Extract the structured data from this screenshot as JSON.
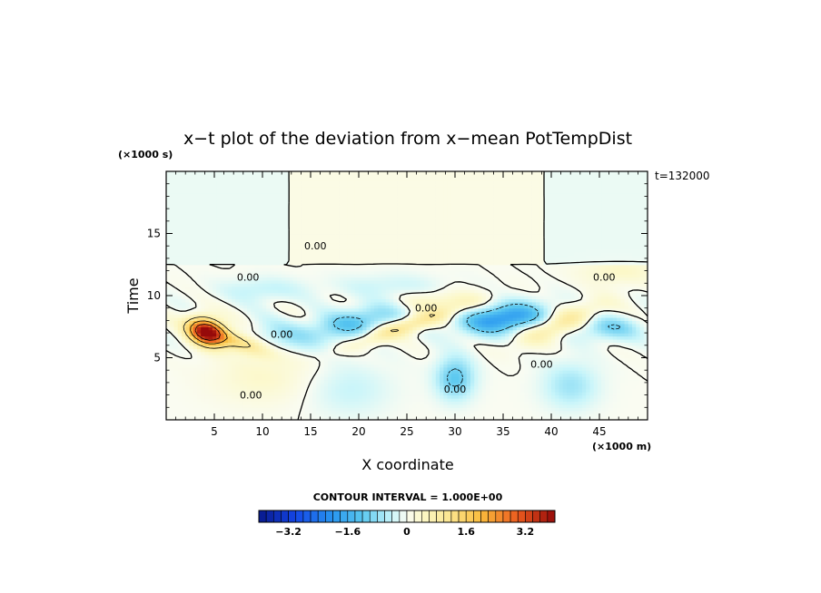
{
  "chart_data": {
    "type": "heatmap",
    "title": "x−t plot of the deviation from x−mean PotTempDist",
    "xlabel": "X coordinate",
    "ylabel": "Time",
    "x_unit": "(×1000 m)",
    "y_unit": "(×1000 s)",
    "time_stamp": "t=132000",
    "xlim": [
      0,
      50
    ],
    "ylim": [
      0,
      20
    ],
    "x_ticks": [
      5,
      10,
      15,
      20,
      25,
      30,
      35,
      40,
      45
    ],
    "y_ticks": [
      5,
      10,
      15
    ],
    "x_tick_labels": [
      "5",
      "10",
      "15",
      "20",
      "25",
      "30",
      "35",
      "40",
      "45"
    ],
    "y_tick_labels": [
      "5",
      "10",
      "15"
    ],
    "contour_interval_label": "CONTOUR INTERVAL = 1.000E+00",
    "contour_labels": [
      {
        "x": 8.5,
        "y": 11.5,
        "text": "0.00"
      },
      {
        "x": 12.0,
        "y": 6.9,
        "text": "0.00"
      },
      {
        "x": 8.8,
        "y": 2.0,
        "text": "0.00"
      },
      {
        "x": 15.5,
        "y": 14.0,
        "text": "0.00"
      },
      {
        "x": 27.0,
        "y": 9.0,
        "text": "0.00"
      },
      {
        "x": 30.0,
        "y": 2.5,
        "text": "0.00"
      },
      {
        "x": 39.0,
        "y": 4.5,
        "text": "0.00"
      },
      {
        "x": 45.5,
        "y": 11.5,
        "text": "0.00"
      }
    ],
    "colorbar": {
      "min": -4.0,
      "max": 4.0,
      "n_bins": 40,
      "ticks": [
        -3.2,
        -1.6,
        0,
        1.6,
        3.2
      ],
      "tick_labels": [
        "−3.2",
        "−1.6",
        "0",
        "1.6",
        "3.2"
      ]
    },
    "features": [
      {
        "x": 4.0,
        "y": 7.0,
        "value": 4.0,
        "note": "warm anomaly core"
      },
      {
        "x": 35.0,
        "y": 8.0,
        "value": -2.0,
        "note": "cold anomaly"
      },
      {
        "x": 20.0,
        "y": 8.0,
        "value": -1.0
      },
      {
        "x": 30.0,
        "y": 3.5,
        "value": -1.2
      }
    ]
  }
}
